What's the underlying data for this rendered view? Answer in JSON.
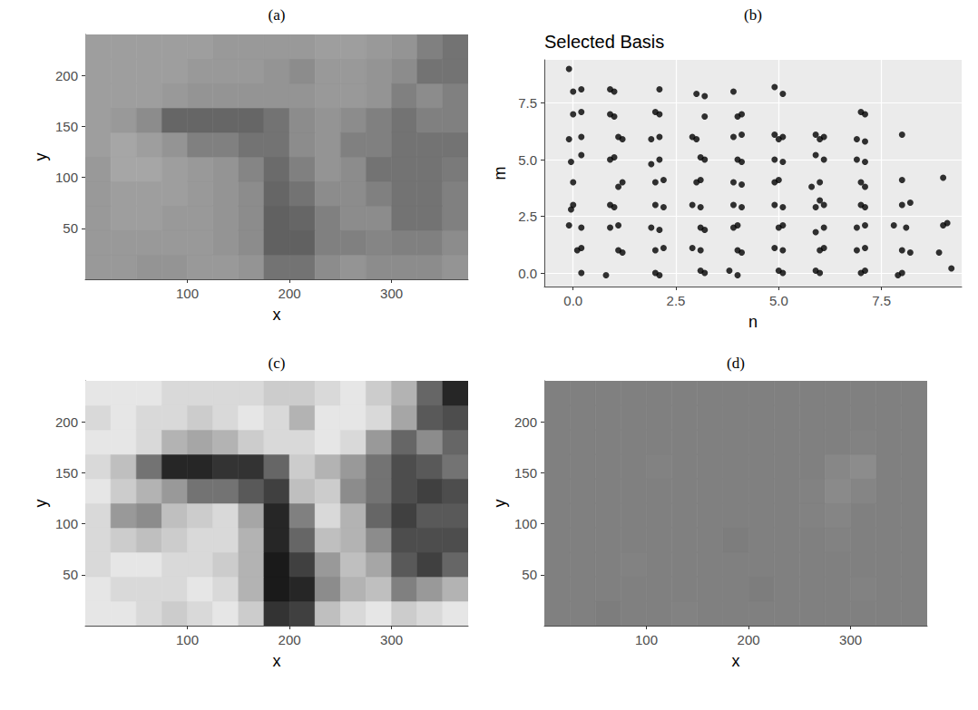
{
  "chart_data": [
    {
      "panel": "(a)",
      "type": "heatmap",
      "x_label": "x",
      "y_label": "y",
      "xlim": [
        0,
        375
      ],
      "ylim": [
        0,
        240
      ],
      "xticks": [
        100,
        200,
        300
      ],
      "yticks": [
        50,
        100,
        150,
        200
      ],
      "grid": false,
      "x_edges": [
        0,
        25,
        50,
        75,
        100,
        125,
        150,
        175,
        200,
        225,
        250,
        275,
        300,
        325,
        350,
        375
      ],
      "y_edges": [
        0,
        24,
        48,
        72,
        96,
        120,
        144,
        168,
        192,
        216,
        240
      ],
      "zlim": [
        0,
        1
      ],
      "z": [
        [
          0.6,
          0.6,
          0.58,
          0.58,
          0.6,
          0.6,
          0.58,
          0.45,
          0.45,
          0.55,
          0.58,
          0.55,
          0.55,
          0.55,
          0.58
        ],
        [
          0.6,
          0.6,
          0.6,
          0.6,
          0.6,
          0.58,
          0.55,
          0.38,
          0.38,
          0.5,
          0.5,
          0.52,
          0.5,
          0.5,
          0.55
        ],
        [
          0.6,
          0.62,
          0.62,
          0.6,
          0.6,
          0.58,
          0.55,
          0.38,
          0.4,
          0.5,
          0.55,
          0.55,
          0.45,
          0.45,
          0.5
        ],
        [
          0.6,
          0.62,
          0.62,
          0.62,
          0.6,
          0.58,
          0.55,
          0.4,
          0.45,
          0.55,
          0.55,
          0.5,
          0.45,
          0.45,
          0.5
        ],
        [
          0.6,
          0.65,
          0.65,
          0.62,
          0.6,
          0.58,
          0.52,
          0.42,
          0.5,
          0.58,
          0.55,
          0.45,
          0.45,
          0.45,
          0.48
        ],
        [
          0.62,
          0.65,
          0.62,
          0.58,
          0.5,
          0.5,
          0.45,
          0.45,
          0.55,
          0.58,
          0.5,
          0.5,
          0.45,
          0.45,
          0.45
        ],
        [
          0.62,
          0.6,
          0.55,
          0.4,
          0.4,
          0.4,
          0.4,
          0.45,
          0.55,
          0.58,
          0.55,
          0.5,
          0.45,
          0.5,
          0.5
        ],
        [
          0.62,
          0.62,
          0.62,
          0.6,
          0.58,
          0.58,
          0.58,
          0.58,
          0.58,
          0.6,
          0.6,
          0.58,
          0.5,
          0.55,
          0.5
        ],
        [
          0.62,
          0.62,
          0.62,
          0.62,
          0.6,
          0.6,
          0.6,
          0.58,
          0.55,
          0.6,
          0.6,
          0.58,
          0.55,
          0.45,
          0.45
        ],
        [
          0.62,
          0.62,
          0.62,
          0.62,
          0.62,
          0.6,
          0.6,
          0.6,
          0.6,
          0.62,
          0.62,
          0.6,
          0.58,
          0.5,
          0.45
        ]
      ]
    },
    {
      "panel": "(b)",
      "type": "scatter",
      "title": "Selected Basis",
      "x_label": "n",
      "y_label": "m",
      "xlim": [
        -0.7,
        9.45
      ],
      "ylim": [
        -0.6,
        9.4
      ],
      "xticks": [
        {
          "value": 0,
          "label": "0.0"
        },
        2.5,
        {
          "value": 5,
          "label": "5.0"
        },
        7.5
      ],
      "yticks": [
        {
          "value": 0,
          "label": "0.0"
        },
        2.5,
        {
          "value": 5,
          "label": "5.0"
        },
        7.5
      ],
      "grid": true,
      "marker": "circle",
      "color": "#000000",
      "x": [
        -0.1,
        0.0,
        0.2,
        0.0,
        0.2,
        -0.1,
        0.2,
        0.2,
        -0.05,
        0.0,
        0.0,
        -0.05,
        -0.1,
        0.2,
        0.1,
        0.2,
        0.2,
        0.9,
        1.0,
        0.9,
        1.0,
        1.1,
        1.2,
        0.9,
        1.0,
        1.2,
        1.1,
        0.9,
        1.0,
        0.9,
        1.1,
        1.1,
        1.2,
        0.8,
        2.1,
        2.0,
        2.1,
        2.1,
        1.9,
        2.1,
        1.9,
        2.0,
        2.2,
        2.0,
        2.2,
        1.9,
        2.1,
        2.0,
        2.2,
        2.0,
        2.1,
        3.0,
        3.2,
        3.2,
        2.9,
        3.0,
        3.1,
        3.2,
        3.0,
        3.1,
        2.9,
        3.1,
        3.1,
        3.2,
        2.9,
        3.1,
        3.1,
        3.2,
        3.9,
        4.1,
        4.0,
        3.9,
        4.1,
        4.0,
        4.1,
        4.1,
        3.9,
        3.9,
        4.1,
        3.9,
        4.0,
        4.0,
        4.1,
        3.8,
        4.0,
        4.9,
        5.1,
        4.9,
        5.1,
        5.0,
        4.9,
        5.1,
        4.9,
        5.0,
        4.9,
        5.1,
        5.0,
        5.1,
        4.9,
        5.1,
        5.0,
        5.1,
        5.9,
        6.1,
        6.0,
        5.9,
        6.1,
        5.8,
        6.0,
        6.1,
        6.0,
        5.9,
        6.1,
        5.9,
        6.0,
        6.1,
        5.9,
        6.0,
        7.1,
        7.0,
        6.9,
        7.1,
        6.9,
        7.1,
        7.0,
        7.1,
        7.0,
        7.1,
        6.9,
        7.1,
        6.9,
        7.1,
        7.1,
        7.0,
        8.0,
        8.0,
        8.0,
        8.2,
        7.8,
        8.1,
        8.0,
        8.2,
        8.0,
        7.9,
        9.0,
        9.0,
        9.1,
        8.9,
        9.2
      ],
      "values": [
        9.0,
        8.0,
        8.1,
        7.0,
        7.1,
        5.9,
        6.0,
        5.2,
        4.9,
        4.0,
        3.0,
        2.8,
        2.1,
        2.0,
        1.0,
        1.1,
        0.0,
        8.1,
        8.0,
        7.0,
        6.9,
        6.0,
        5.9,
        5.0,
        5.1,
        4.0,
        3.8,
        3.0,
        2.9,
        2.0,
        2.1,
        1.0,
        0.9,
        -0.1,
        8.1,
        7.1,
        7.0,
        6.0,
        5.9,
        5.0,
        4.8,
        4.0,
        4.1,
        3.0,
        2.9,
        2.0,
        1.9,
        1.0,
        1.1,
        0.0,
        -0.1,
        7.9,
        7.8,
        6.9,
        6.0,
        5.9,
        5.1,
        5.0,
        4.0,
        4.1,
        3.0,
        2.9,
        2.0,
        1.9,
        1.1,
        1.0,
        0.1,
        0.0,
        8.0,
        7.0,
        6.9,
        6.0,
        6.1,
        5.0,
        4.9,
        3.9,
        4.0,
        3.0,
        2.9,
        2.0,
        2.1,
        1.0,
        0.9,
        0.1,
        -0.1,
        8.2,
        7.9,
        6.1,
        6.0,
        5.9,
        5.0,
        4.9,
        4.0,
        4.1,
        3.0,
        2.9,
        2.0,
        2.1,
        1.1,
        1.0,
        0.1,
        0.0,
        6.1,
        6.0,
        5.9,
        5.2,
        5.0,
        3.8,
        4.0,
        3.0,
        3.2,
        2.9,
        2.0,
        1.8,
        1.0,
        1.1,
        0.1,
        0.0,
        7.0,
        7.1,
        5.9,
        5.8,
        5.0,
        4.9,
        4.0,
        3.8,
        3.0,
        2.9,
        2.0,
        2.1,
        1.0,
        1.1,
        0.1,
        0.0,
        6.1,
        4.1,
        3.0,
        3.1,
        2.1,
        2.0,
        1.0,
        0.9,
        0.0,
        -0.1,
        4.2,
        2.1,
        2.2,
        0.9,
        0.2
      ]
    },
    {
      "panel": "(c)",
      "type": "heatmap",
      "x_label": "x",
      "y_label": "y",
      "xlim": [
        0,
        375
      ],
      "ylim": [
        0,
        240
      ],
      "xticks": [
        100,
        200,
        300
      ],
      "yticks": [
        50,
        100,
        150,
        200
      ],
      "grid": false,
      "x_edges": [
        0,
        25,
        50,
        75,
        100,
        125,
        150,
        175,
        200,
        225,
        250,
        275,
        300,
        325,
        350,
        375
      ],
      "y_edges": [
        0,
        24,
        48,
        72,
        96,
        120,
        144,
        168,
        192,
        216,
        240
      ],
      "zlim": [
        0,
        1
      ],
      "z": [
        [
          0.9,
          0.9,
          0.85,
          0.8,
          0.85,
          0.9,
          0.8,
          0.2,
          0.25,
          0.75,
          0.85,
          0.9,
          0.8,
          0.85,
          0.9
        ],
        [
          0.9,
          0.85,
          0.85,
          0.85,
          0.9,
          0.85,
          0.7,
          0.1,
          0.15,
          0.55,
          0.7,
          0.75,
          0.5,
          0.6,
          0.7
        ],
        [
          0.85,
          0.9,
          0.9,
          0.85,
          0.85,
          0.8,
          0.7,
          0.1,
          0.25,
          0.6,
          0.75,
          0.65,
          0.35,
          0.25,
          0.4
        ],
        [
          0.85,
          0.8,
          0.75,
          0.8,
          0.85,
          0.85,
          0.7,
          0.15,
          0.4,
          0.75,
          0.7,
          0.55,
          0.3,
          0.3,
          0.3
        ],
        [
          0.85,
          0.6,
          0.55,
          0.75,
          0.8,
          0.85,
          0.65,
          0.15,
          0.5,
          0.85,
          0.7,
          0.4,
          0.25,
          0.35,
          0.35
        ],
        [
          0.9,
          0.8,
          0.7,
          0.6,
          0.45,
          0.45,
          0.35,
          0.25,
          0.75,
          0.8,
          0.55,
          0.45,
          0.3,
          0.25,
          0.3
        ],
        [
          0.85,
          0.75,
          0.45,
          0.15,
          0.15,
          0.2,
          0.2,
          0.4,
          0.8,
          0.7,
          0.6,
          0.45,
          0.3,
          0.35,
          0.45
        ],
        [
          0.9,
          0.9,
          0.85,
          0.7,
          0.65,
          0.7,
          0.8,
          0.85,
          0.85,
          0.9,
          0.85,
          0.6,
          0.4,
          0.55,
          0.4
        ],
        [
          0.85,
          0.9,
          0.85,
          0.85,
          0.8,
          0.85,
          0.9,
          0.85,
          0.7,
          0.9,
          0.9,
          0.85,
          0.65,
          0.35,
          0.3
        ],
        [
          0.9,
          0.9,
          0.9,
          0.85,
          0.85,
          0.85,
          0.85,
          0.8,
          0.8,
          0.85,
          0.9,
          0.8,
          0.7,
          0.4,
          0.15
        ]
      ]
    },
    {
      "panel": "(d)",
      "type": "heatmap",
      "x_label": "x",
      "y_label": "y",
      "xlim": [
        0,
        375
      ],
      "ylim": [
        0,
        240
      ],
      "xticks": [
        100,
        200,
        300
      ],
      "yticks": [
        50,
        100,
        150,
        200
      ],
      "grid": false,
      "x_edges": [
        0,
        25,
        50,
        75,
        100,
        125,
        150,
        175,
        200,
        225,
        250,
        275,
        300,
        325,
        350,
        375
      ],
      "y_edges": [
        0,
        24,
        48,
        72,
        96,
        120,
        144,
        168,
        192,
        216,
        240
      ],
      "zlim": [
        0,
        1
      ],
      "z": [
        [
          0.5,
          0.5,
          0.49,
          0.5,
          0.5,
          0.51,
          0.5,
          0.5,
          0.5,
          0.5,
          0.5,
          0.5,
          0.5,
          0.5,
          0.5
        ],
        [
          0.5,
          0.5,
          0.5,
          0.5,
          0.5,
          0.5,
          0.5,
          0.5,
          0.49,
          0.5,
          0.5,
          0.5,
          0.51,
          0.5,
          0.5
        ],
        [
          0.5,
          0.5,
          0.5,
          0.51,
          0.5,
          0.5,
          0.5,
          0.5,
          0.5,
          0.5,
          0.5,
          0.5,
          0.5,
          0.5,
          0.5
        ],
        [
          0.5,
          0.5,
          0.5,
          0.5,
          0.5,
          0.5,
          0.5,
          0.49,
          0.5,
          0.5,
          0.5,
          0.51,
          0.5,
          0.5,
          0.5
        ],
        [
          0.5,
          0.5,
          0.5,
          0.5,
          0.5,
          0.5,
          0.5,
          0.5,
          0.5,
          0.5,
          0.51,
          0.52,
          0.5,
          0.5,
          0.5
        ],
        [
          0.5,
          0.5,
          0.5,
          0.5,
          0.5,
          0.5,
          0.5,
          0.5,
          0.5,
          0.5,
          0.51,
          0.54,
          0.52,
          0.5,
          0.5
        ],
        [
          0.5,
          0.5,
          0.5,
          0.5,
          0.51,
          0.5,
          0.5,
          0.5,
          0.5,
          0.5,
          0.5,
          0.53,
          0.55,
          0.5,
          0.5
        ],
        [
          0.5,
          0.5,
          0.5,
          0.5,
          0.5,
          0.5,
          0.5,
          0.5,
          0.5,
          0.5,
          0.5,
          0.5,
          0.51,
          0.5,
          0.5
        ],
        [
          0.5,
          0.5,
          0.5,
          0.5,
          0.5,
          0.5,
          0.5,
          0.5,
          0.5,
          0.5,
          0.5,
          0.5,
          0.5,
          0.5,
          0.5
        ],
        [
          0.5,
          0.5,
          0.5,
          0.5,
          0.5,
          0.5,
          0.5,
          0.5,
          0.5,
          0.5,
          0.5,
          0.5,
          0.5,
          0.5,
          0.5
        ]
      ]
    }
  ]
}
